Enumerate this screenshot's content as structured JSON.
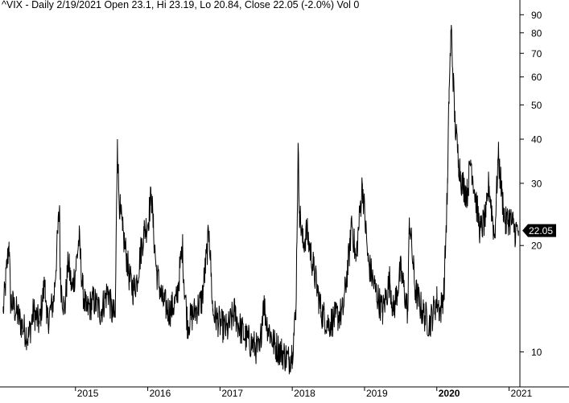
{
  "header": {
    "quote_line": "^VIX - Daily 2/19/2021 Open 23.1, Hi 23.19, Lo 20.84, Close 22.05 (-2.0%) Vol 0"
  },
  "chart_data": {
    "type": "line",
    "title": "^VIX - Daily 2/19/2021 Open 23.1, Hi 23.19, Lo 20.84, Close 22.05 (-2.0%) Vol 0",
    "scale": "log",
    "grid": false,
    "ylim": [
      8,
      95
    ],
    "xlim": [
      2014.0,
      2021.15
    ],
    "y_ticks": [
      10,
      20,
      30,
      40,
      50,
      60,
      70,
      80,
      90
    ],
    "x_ticks": [
      {
        "label": "2015",
        "x": 2015,
        "bold": false
      },
      {
        "label": "2016",
        "x": 2016,
        "bold": false
      },
      {
        "label": "2017",
        "x": 2017,
        "bold": false
      },
      {
        "label": "2018",
        "x": 2018,
        "bold": false
      },
      {
        "label": "2019",
        "x": 2019,
        "bold": false
      },
      {
        "label": "2020",
        "x": 2020,
        "bold": true
      },
      {
        "label": "2021",
        "x": 2021,
        "bold": false
      }
    ],
    "last_value_label": "22.05",
    "last_value": 22.05,
    "series": [
      {
        "x": [
          2014.0,
          2014.08,
          2014.1,
          2014.18,
          2014.25,
          2014.35,
          2014.42,
          2014.5,
          2014.58,
          2014.6,
          2014.7,
          2014.78,
          2014.79,
          2014.85,
          2014.9,
          2014.95,
          2015.0,
          2015.05,
          2015.1,
          2015.15,
          2015.25,
          2015.35,
          2015.45,
          2015.5,
          2015.55,
          2015.58,
          2015.6,
          2015.62,
          2015.65,
          2015.7,
          2015.75,
          2015.8,
          2015.85,
          2015.9,
          2015.95,
          2016.0,
          2016.05,
          2016.08,
          2016.12,
          2016.2,
          2016.3,
          2016.4,
          2016.48,
          2016.5,
          2016.55,
          2016.65,
          2016.75,
          2016.85,
          2016.9,
          2017.0,
          2017.1,
          2017.2,
          2017.25,
          2017.35,
          2017.45,
          2017.55,
          2017.6,
          2017.65,
          2017.75,
          2017.85,
          2017.95,
          2018.0,
          2018.05,
          2018.08,
          2018.1,
          2018.15,
          2018.2,
          2018.3,
          2018.4,
          2018.5,
          2018.6,
          2018.7,
          2018.8,
          2018.82,
          2018.88,
          2018.97,
          2019.05,
          2019.15,
          2019.25,
          2019.35,
          2019.4,
          2019.5,
          2019.6,
          2019.62,
          2019.7,
          2019.8,
          2019.9,
          2020.0,
          2020.05,
          2020.1,
          2020.15,
          2020.17,
          2020.2,
          2020.25,
          2020.3,
          2020.35,
          2020.42,
          2020.47,
          2020.55,
          2020.6,
          2020.68,
          2020.72,
          2020.8,
          2020.85,
          2020.9,
          2020.95,
          2021.0,
          2021.05,
          2021.08,
          2021.13
        ],
        "y": [
          13,
          20.5,
          14,
          13,
          12,
          11,
          13,
          12,
          16,
          12,
          14,
          26,
          16,
          13,
          18,
          15,
          17,
          21,
          15,
          13,
          14,
          13,
          15,
          13,
          12.5,
          40,
          28,
          25,
          22,
          19,
          16,
          15,
          16,
          19,
          22,
          23,
          28,
          22,
          17,
          14,
          13,
          14,
          20,
          16,
          12,
          13,
          14,
          22,
          13,
          12,
          11.5,
          13,
          12,
          11,
          10.5,
          10,
          14,
          12,
          10.5,
          10,
          9.5,
          10,
          13,
          37,
          25,
          20,
          22,
          17,
          13,
          12,
          12.5,
          13,
          20,
          24,
          18,
          30,
          18,
          15,
          13,
          16,
          13,
          17,
          13,
          24,
          15,
          13,
          12,
          14,
          13,
          15,
          30,
          55,
          82,
          45,
          35,
          30,
          28,
          35,
          26,
          22,
          24,
          30,
          21,
          36,
          28,
          23,
          24,
          23,
          22,
          22.05
        ]
      }
    ]
  }
}
